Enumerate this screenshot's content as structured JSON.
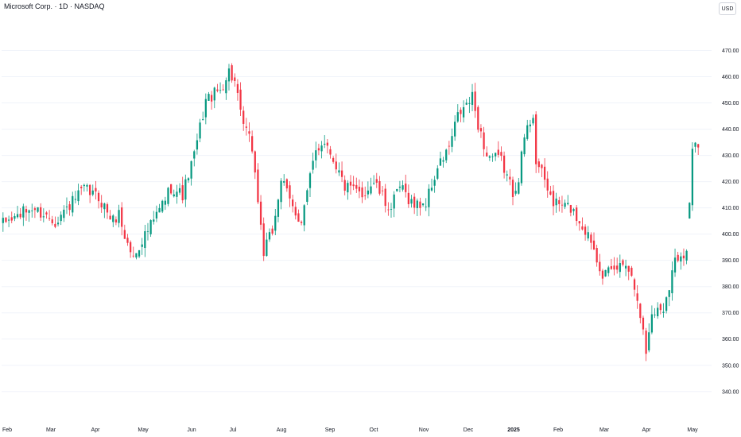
{
  "header": {
    "title": "Microsoft Corp. · 1D · NASDAQ",
    "currency": "USD"
  },
  "colors": {
    "up": "#089981",
    "down": "#f23645",
    "grid": "#f0f3fa"
  },
  "chart_data": {
    "type": "candlestick",
    "title": "Microsoft Corp. · 1D · NASDAQ",
    "ylim": [
      336,
      475
    ],
    "y_ticks": [
      "470.00",
      "460.00",
      "450.00",
      "440.00",
      "430.00",
      "420.00",
      "410.00",
      "400.00",
      "390.00",
      "380.00",
      "370.00",
      "360.00",
      "350.00",
      "340.00"
    ],
    "x_ticks": [
      {
        "label": "Feb",
        "bold": false
      },
      {
        "label": "Mar",
        "bold": false
      },
      {
        "label": "Apr",
        "bold": false
      },
      {
        "label": "May",
        "bold": false
      },
      {
        "label": "Jun",
        "bold": false
      },
      {
        "label": "Jul",
        "bold": false
      },
      {
        "label": "Aug",
        "bold": false
      },
      {
        "label": "Sep",
        "bold": false
      },
      {
        "label": "Oct",
        "bold": false
      },
      {
        "label": "Nov",
        "bold": false
      },
      {
        "label": "Dec",
        "bold": false
      },
      {
        "label": "2025",
        "bold": true
      },
      {
        "label": "Feb",
        "bold": false
      },
      {
        "label": "Mar",
        "bold": false
      },
      {
        "label": "Apr",
        "bold": false
      },
      {
        "label": "May",
        "bold": false
      }
    ],
    "close_anchors": [
      [
        0,
        404
      ],
      [
        10,
        410
      ],
      [
        18,
        405
      ],
      [
        28,
        417
      ],
      [
        33,
        414
      ],
      [
        38,
        405
      ],
      [
        40,
        408
      ],
      [
        42,
        399
      ],
      [
        45,
        391
      ],
      [
        48,
        398
      ],
      [
        52,
        405
      ],
      [
        58,
        418
      ],
      [
        62,
        415
      ],
      [
        66,
        430
      ],
      [
        70,
        451
      ],
      [
        75,
        455
      ],
      [
        78,
        462
      ],
      [
        80,
        458
      ],
      [
        82,
        445
      ],
      [
        86,
        433
      ],
      [
        90,
        393
      ],
      [
        93,
        401
      ],
      [
        96,
        421
      ],
      [
        100,
        410
      ],
      [
        103,
        405
      ],
      [
        108,
        432
      ],
      [
        111,
        436
      ],
      [
        114,
        429
      ],
      [
        118,
        418
      ],
      [
        124,
        415
      ],
      [
        128,
        420
      ],
      [
        132,
        412
      ],
      [
        134,
        410
      ],
      [
        137,
        418
      ],
      [
        142,
        411
      ],
      [
        146,
        412
      ],
      [
        150,
        425
      ],
      [
        154,
        433
      ],
      [
        157,
        445
      ],
      [
        162,
        452
      ],
      [
        164,
        442
      ],
      [
        167,
        430
      ],
      [
        172,
        428
      ],
      [
        176,
        416
      ],
      [
        178,
        422
      ],
      [
        180,
        437
      ],
      [
        183,
        446
      ],
      [
        184,
        428
      ],
      [
        190,
        412
      ],
      [
        196,
        410
      ],
      [
        203,
        398
      ],
      [
        207,
        385
      ],
      [
        210,
        385
      ],
      [
        215,
        390
      ],
      [
        219,
        377
      ],
      [
        222,
        355
      ],
      [
        224,
        370
      ],
      [
        228,
        372
      ],
      [
        232,
        390
      ],
      [
        234,
        393
      ],
      [
        236,
        393
      ],
      [
        238,
        433
      ],
      [
        240,
        433
      ]
    ],
    "gaps": [
      {
        "index": 237,
        "direction": "up",
        "amount": 30
      }
    ],
    "bar_count": 241
  }
}
